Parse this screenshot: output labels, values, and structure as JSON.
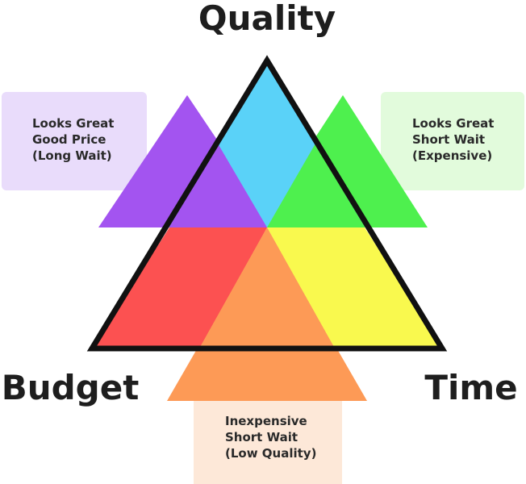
{
  "diagram": {
    "labels": {
      "top": "Quality",
      "left": "Budget",
      "right": "Time"
    },
    "boxes": {
      "left": {
        "lines": [
          "Looks Great",
          "Good Price",
          "(Long Wait)"
        ],
        "color": "#e9dcfb"
      },
      "right": {
        "lines": [
          "Looks Great",
          "Short Wait",
          "(Expensive)"
        ],
        "color": "#e2fbdc"
      },
      "bottom": {
        "lines": [
          "Inexpensive",
          "Short Wait",
          "(Low Quality)"
        ],
        "color": "#fde8d8"
      }
    },
    "colors": {
      "quality": "#5ad2f8",
      "purple": "#a354f0",
      "green": "#4ef04e",
      "red": "#fc5151",
      "yellow": "#f9f94e",
      "orange": "#fd9a56",
      "outline": "#111111"
    }
  }
}
